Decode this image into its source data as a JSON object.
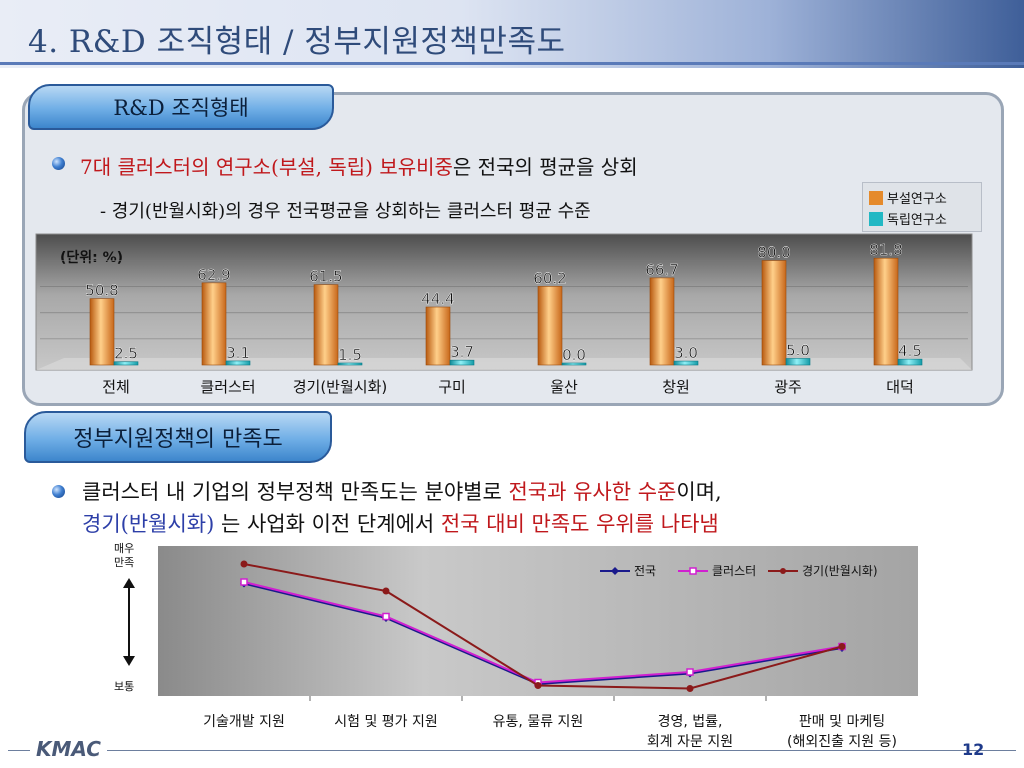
{
  "title": "4. R&D 조직형태 / 정부지원정책만족도",
  "section1": {
    "tab": "R&D 조직형태",
    "bullet_prefix_red": "7대 클러스터의 연구소(부설, 독립) 보유비중",
    "bullet_suffix": "은 전국의 평균을 상회",
    "sub_bullet": "- 경기(반월시화)의 경우 전국평균을 상회하는 클러스터 평균 수준"
  },
  "section2": {
    "tab": "정부지원정책의 만족도",
    "line1_a": "클러스터 내 기업의 정부정책 만족도는 분야별로 ",
    "line1_red": "전국과 유사한 수준",
    "line1_b": "이며,",
    "line2_blue": "경기(반월시화) ",
    "line2_a": "는 사업화 이전 단계에서 ",
    "line2_red": "전국 대비 만족도 우위를 나타냄"
  },
  "footer": {
    "logo": "KMAC",
    "page": "12"
  },
  "colors": {
    "orange": "#e58a2b",
    "teal": "#22b8c4",
    "red_text": "#c0181c",
    "blue_text": "#2d3fa8"
  },
  "chart_data": [
    {
      "type": "bar",
      "unit_label": "(단위: %)",
      "categories": [
        "전체",
        "클러스터",
        "경기(반월시화)",
        "구미",
        "울산",
        "창원",
        "광주",
        "대덕"
      ],
      "series": [
        {
          "name": "부설연구소",
          "color": "#e58a2b",
          "values": [
            50.8,
            62.9,
            61.5,
            44.4,
            60.2,
            66.7,
            80.0,
            81.8
          ]
        },
        {
          "name": "독립연구소",
          "color": "#22b8c4",
          "values": [
            2.5,
            3.1,
            1.5,
            3.7,
            0.0,
            3.0,
            5.0,
            4.5
          ]
        }
      ],
      "ylim": [
        0,
        85
      ],
      "legend": "top-right"
    },
    {
      "type": "line",
      "categories": [
        "기술개발 지원",
        "시험 및 평가 지원",
        "유통, 물류 지원",
        "경영, 법률,\n회계 자문 지원",
        "판매 및 마케팅\n(해외진출 지원 등)"
      ],
      "y_top_label": "매우\n만족",
      "y_bottom_label": "보통",
      "series": [
        {
          "name": "전국",
          "color": "#1a1a8c",
          "values": [
            3.65,
            3.42,
            2.98,
            3.05,
            3.22
          ]
        },
        {
          "name": "클러스터",
          "color": "#d020d0",
          "values": [
            3.66,
            3.43,
            2.99,
            3.06,
            3.23
          ]
        },
        {
          "name": "경기(반월시화)",
          "color": "#8b1a1a",
          "values": [
            3.78,
            3.6,
            2.97,
            2.95,
            3.23
          ]
        }
      ],
      "ylim": [
        2.9,
        3.9
      ],
      "legend": "top-right"
    }
  ]
}
